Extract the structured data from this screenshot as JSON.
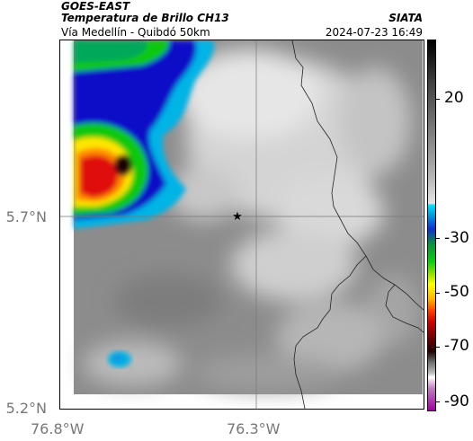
{
  "header": {
    "satellite": "GOES-EAST",
    "product": "Temperatura de Brillo CH13",
    "region": "Vía Medellín - Quibdó 50km",
    "org": "SIATA",
    "datetime": "2024-07-23 16:49"
  },
  "axes": {
    "lat_labels": [
      "5.7°N",
      "5.2°N"
    ],
    "lon_labels": [
      "76.8°W",
      "76.3°W"
    ]
  },
  "colorbar": {
    "labels": [
      "20",
      "-30",
      "-50",
      "-70",
      "-90"
    ]
  },
  "colors": {
    "warm_gray": "#8a8a8a",
    "cold_cyan": "#00b4e6",
    "cold_blue": "#1010c8",
    "cold_green": "#10c810",
    "cold_yellow": "#ffe600",
    "cold_red": "#e01010"
  },
  "marker": {
    "icon": "star-icon"
  }
}
